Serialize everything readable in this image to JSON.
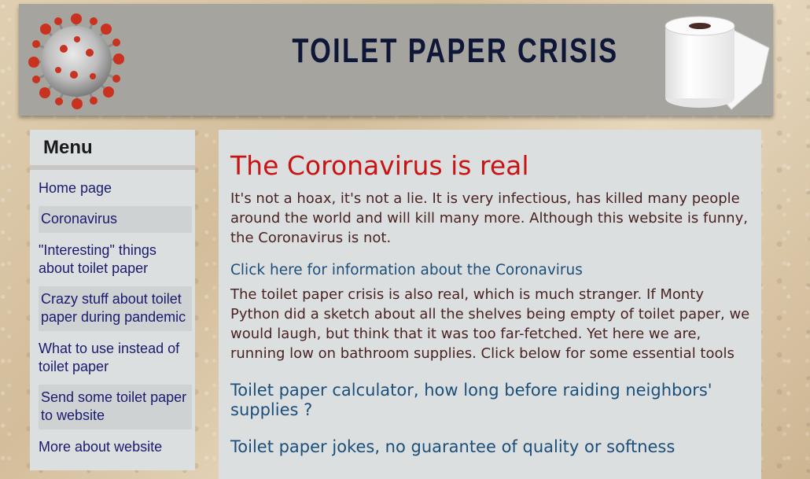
{
  "header": {
    "title": "TOILET PAPER CRISIS",
    "left_image_icon": "coronavirus-icon",
    "right_image_icon": "toilet-paper-roll-icon"
  },
  "sidebar": {
    "title": "Menu",
    "items": [
      {
        "label": "Home page"
      },
      {
        "label": "Coronavirus"
      },
      {
        "label": "\"Interesting\" things about toilet paper"
      },
      {
        "label": "Crazy stuff about toilet paper during pandemic"
      },
      {
        "label": "What to use instead of toilet paper"
      },
      {
        "label": "Send some toilet paper to website"
      },
      {
        "label": "More about website"
      }
    ]
  },
  "main": {
    "heading": "The Coronavirus is real",
    "intro": "It's not a hoax, it's not a lie. It is very infectious, has killed many people around the world and will kill many more. Although this website is funny, the Coronavirus is not.",
    "info_link": "Click here for information about the Coronavirus",
    "crisis_text": "The toilet paper crisis is also real, which is much stranger. If Monty Python did a sketch about all the shelves being empty of toilet paper, we would laugh, but think that it was too far-fetched. Yet here we are, running low on bathroom supplies. Click below for some essential tools",
    "calculator_link": "Toilet paper calculator, how long before raiding neighbors' supplies ?",
    "jokes_link": "Toilet paper jokes, no guarantee of quality or softness"
  },
  "colors": {
    "heading": "#c81414",
    "body_text": "#4a2323",
    "link": "#1b4f7a",
    "menu_link": "#1a1a6e",
    "panel": "#dcdfe0",
    "banner": "#a5a49e"
  }
}
